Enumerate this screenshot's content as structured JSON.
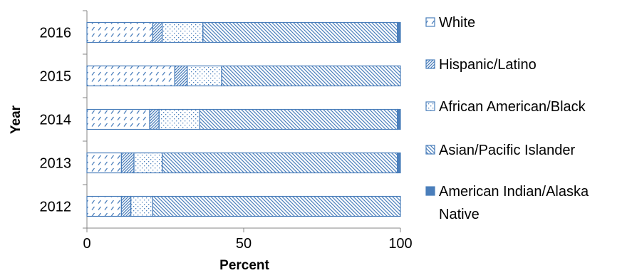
{
  "chart_data": {
    "type": "bar",
    "orientation": "horizontal",
    "stacked": true,
    "categories": [
      "2016",
      "2015",
      "2014",
      "2013",
      "2012"
    ],
    "series": [
      {
        "name": "White",
        "values": [
          21,
          28,
          20,
          11,
          11
        ],
        "pattern": "dashes"
      },
      {
        "name": "Hispanic/Latino",
        "values": [
          3,
          4,
          3,
          4,
          3
        ],
        "pattern": "dense-hatch"
      },
      {
        "name": "African American/Black",
        "values": [
          13,
          11,
          13,
          9,
          7
        ],
        "pattern": "dots"
      },
      {
        "name": "Asian/Pacific Islander",
        "values": [
          62,
          57,
          63,
          75,
          79
        ],
        "pattern": "diagonal-hatch"
      },
      {
        "name": "American Indian/Alaska Native",
        "values": [
          1,
          0,
          1,
          1,
          0
        ],
        "pattern": "solid"
      }
    ],
    "xlabel": "Percent",
    "ylabel": "Year",
    "xlim": [
      0,
      100
    ],
    "xticks": [
      "0",
      "50",
      "100"
    ],
    "grid": false,
    "legend_position": "right",
    "colors": {
      "outline": "#4a7ebb",
      "pattern": "#4a7ebb",
      "solid": "#4a7ebb"
    }
  }
}
